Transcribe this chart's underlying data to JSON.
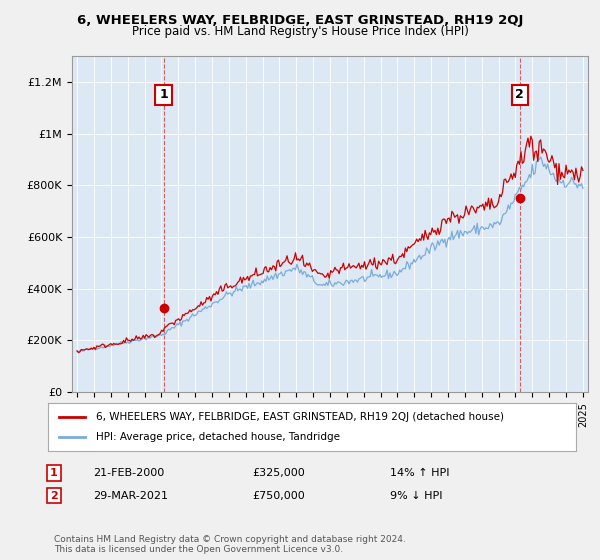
{
  "title": "6, WHEELERS WAY, FELBRIDGE, EAST GRINSTEAD, RH19 2QJ",
  "subtitle": "Price paid vs. HM Land Registry's House Price Index (HPI)",
  "ylim": [
    0,
    1300000
  ],
  "yticks": [
    0,
    200000,
    400000,
    600000,
    800000,
    1000000,
    1200000
  ],
  "ytick_labels": [
    "£0",
    "£200K",
    "£400K",
    "£600K",
    "£800K",
    "£1M",
    "£1.2M"
  ],
  "xlim_start": 1994.7,
  "xlim_end": 2025.3,
  "background_color": "#f0f0f0",
  "plot_bg_color": "#dce9f5",
  "red_color": "#cc0000",
  "blue_color": "#7aabdb",
  "point1_x": 2000.13,
  "point1_y": 325000,
  "point2_x": 2021.25,
  "point2_y": 750000,
  "legend_label_red": "6, WHEELERS WAY, FELBRIDGE, EAST GRINSTEAD, RH19 2QJ (detached house)",
  "legend_label_blue": "HPI: Average price, detached house, Tandridge",
  "annotation1_date": "21-FEB-2000",
  "annotation1_price": "£325,000",
  "annotation1_hpi": "14% ↑ HPI",
  "annotation2_date": "29-MAR-2021",
  "annotation2_price": "£750,000",
  "annotation2_hpi": "9% ↓ HPI",
  "footer": "Contains HM Land Registry data © Crown copyright and database right 2024.\nThis data is licensed under the Open Government Licence v3.0."
}
